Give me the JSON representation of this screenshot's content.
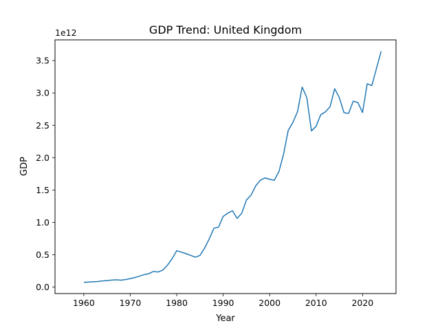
{
  "chart_data": {
    "type": "line",
    "title": "GDP Trend: United Kingdom",
    "xlabel": "Year",
    "ylabel": "GDP",
    "y_offset_text": "1e12",
    "xlim": [
      1953.8,
      2027.2
    ],
    "ylim": [
      -100000000000.0,
      3820000000000.0
    ],
    "x_ticks": [
      1960,
      1970,
      1980,
      1990,
      2000,
      2010,
      2020
    ],
    "x_tick_labels": [
      "1960",
      "1970",
      "1980",
      "1990",
      "2000",
      "2010",
      "2020"
    ],
    "y_ticks": [
      0,
      500000000000.0,
      1000000000000.0,
      1500000000000.0,
      2000000000000.0,
      2500000000000.0,
      3000000000000.0,
      3500000000000.0
    ],
    "y_tick_labels": [
      "0.0",
      "0.5",
      "1.0",
      "1.5",
      "2.0",
      "2.5",
      "3.0",
      "3.5"
    ],
    "grid": false,
    "series_color": "#1f77b4",
    "series": [
      {
        "name": "",
        "x": [
          1960,
          1961,
          1962,
          1963,
          1964,
          1965,
          1966,
          1967,
          1968,
          1969,
          1970,
          1971,
          1972,
          1973,
          1974,
          1975,
          1976,
          1977,
          1978,
          1979,
          1980,
          1981,
          1982,
          1983,
          1984,
          1985,
          1986,
          1987,
          1988,
          1989,
          1990,
          1991,
          1992,
          1993,
          1994,
          1995,
          1996,
          1997,
          1998,
          1999,
          2000,
          2001,
          2002,
          2003,
          2004,
          2005,
          2006,
          2007,
          2008,
          2009,
          2010,
          2011,
          2012,
          2013,
          2014,
          2015,
          2016,
          2017,
          2018,
          2019,
          2020,
          2021,
          2022,
          2023,
          2024
        ],
        "values": [
          73000000000.0,
          78000000000.0,
          82000000000.0,
          86000000000.0,
          95000000000.0,
          101000000000.0,
          108000000000.0,
          112000000000.0,
          107000000000.0,
          116000000000.0,
          131000000000.0,
          148000000000.0,
          170000000000.0,
          193000000000.0,
          207000000000.0,
          242000000000.0,
          233000000000.0,
          263000000000.0,
          337000000000.0,
          439000000000.0,
          562000000000.0,
          541000000000.0,
          516000000000.0,
          490000000000.0,
          462000000000.0,
          489000000000.0,
          601000000000.0,
          745000000000.0,
          910000000000.0,
          926000000000.0,
          1093000000000.0,
          1142000000000.0,
          1180000000000.0,
          1062000000000.0,
          1141000000000.0,
          1344000000000.0,
          1420000000000.0,
          1564000000000.0,
          1652000000000.0,
          1687000000000.0,
          1666000000000.0,
          1650000000000.0,
          1785000000000.0,
          2055000000000.0,
          2421000000000.0,
          2544000000000.0,
          2709000000000.0,
          3090000000000.0,
          2929000000000.0,
          2413000000000.0,
          2485000000000.0,
          2664000000000.0,
          2708000000000.0,
          2786000000000.0,
          3065000000000.0,
          2928000000000.0,
          2695000000000.0,
          2684000000000.0,
          2873000000000.0,
          2851000000000.0,
          2698000000000.0,
          3141000000000.0,
          3114000000000.0,
          3380000000000.0,
          3644000000000.0
        ]
      }
    ]
  }
}
